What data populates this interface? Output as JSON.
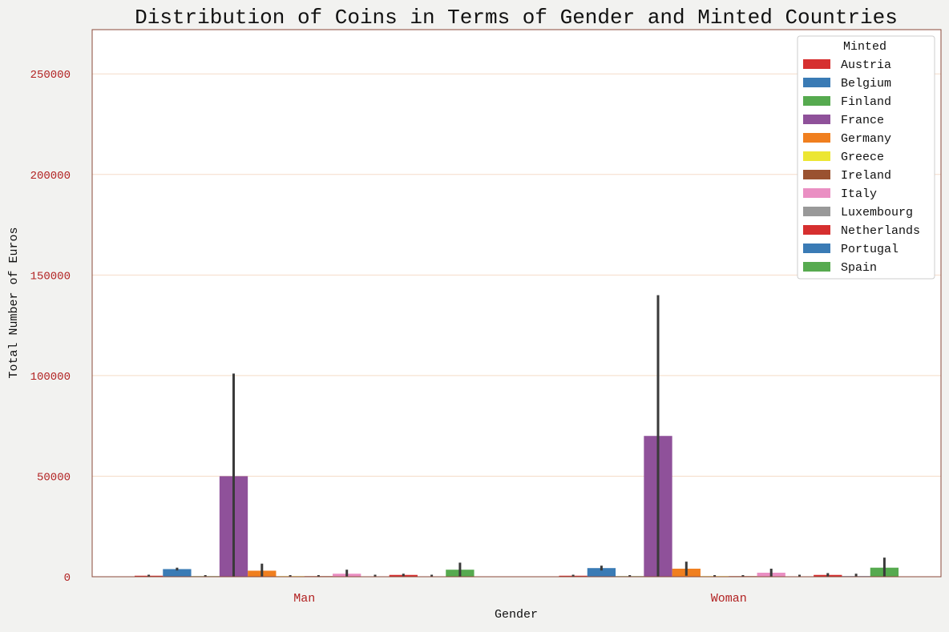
{
  "chart_data": {
    "type": "bar",
    "title": "Distribution of Coins in Terms of Gender and Minted Countries",
    "xlabel": "Gender",
    "ylabel": "Total Number of Euros",
    "categories": [
      "Man",
      "Woman"
    ],
    "ylim": [
      0,
      272000
    ],
    "yticks": [
      0,
      50000,
      100000,
      150000,
      200000,
      250000
    ],
    "ytick_labels": [
      "0",
      "50000",
      "100000",
      "150000",
      "200000",
      "250000"
    ],
    "grid": true,
    "legend": {
      "title": "Minted",
      "placement": "top-right"
    },
    "series": [
      {
        "name": "Austria",
        "color": "#d62f2f",
        "values": [
          500,
          500
        ],
        "error_high": [
          1000,
          1000
        ]
      },
      {
        "name": "Belgium",
        "color": "#3a7bb5",
        "values": [
          3800,
          4300
        ],
        "error_high": [
          4500,
          5500
        ]
      },
      {
        "name": "Finland",
        "color": "#56aa4f",
        "values": [
          300,
          300
        ],
        "error_high": [
          800,
          800
        ]
      },
      {
        "name": "France",
        "color": "#8f519a",
        "values": [
          50000,
          70000
        ],
        "error_high": [
          101000,
          140000
        ]
      },
      {
        "name": "Germany",
        "color": "#f07f1f",
        "values": [
          3000,
          4000
        ],
        "error_high": [
          6500,
          7500
        ]
      },
      {
        "name": "Greece",
        "color": "#ece633",
        "values": [
          300,
          300
        ],
        "error_high": [
          800,
          800
        ]
      },
      {
        "name": "Ireland",
        "color": "#9a5230",
        "values": [
          300,
          300
        ],
        "error_high": [
          800,
          800
        ]
      },
      {
        "name": "Italy",
        "color": "#ea8fc3",
        "values": [
          1500,
          2000
        ],
        "error_high": [
          3500,
          4000
        ]
      },
      {
        "name": "Luxembourg",
        "color": "#999999",
        "values": [
          100,
          100
        ],
        "error_high": [
          1000,
          1000
        ]
      },
      {
        "name": "Netherlands",
        "color": "#d62f2f",
        "values": [
          900,
          900
        ],
        "error_high": [
          1500,
          1800
        ]
      },
      {
        "name": "Portugal",
        "color": "#3a7bb5",
        "values": [
          200,
          300
        ],
        "error_high": [
          1000,
          1500
        ]
      },
      {
        "name": "Spain",
        "color": "#56aa4f",
        "values": [
          3500,
          4500
        ],
        "error_high": [
          7000,
          9500
        ]
      }
    ]
  },
  "colors": {
    "axes_edge": "#8b4a3a",
    "tick_label": "#b22222",
    "grid": "#f5dcc8",
    "error_bar": "#3a3a3a",
    "text": "#111111",
    "background": "#f2f2f0",
    "plot_background": "#ffffff"
  }
}
